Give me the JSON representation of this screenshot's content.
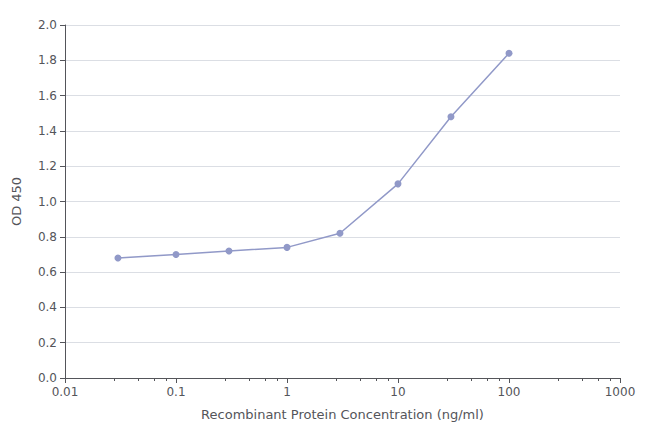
{
  "chart_data": {
    "type": "line",
    "x": [
      0.03,
      0.1,
      0.3,
      1.0,
      3.0,
      10.0,
      30.0,
      100.0
    ],
    "values": [
      0.68,
      0.7,
      0.72,
      0.74,
      0.82,
      1.1,
      1.48,
      1.84
    ],
    "xlabel": "Recombinant Protein Concentration (ng/ml)",
    "ylabel": "OD 450",
    "log": "x",
    "xlim": [
      0.01,
      1000
    ],
    "xticks": [
      0.01,
      0.1,
      1,
      10,
      100,
      1000
    ],
    "ylim": [
      0,
      2.0
    ],
    "yticks": [
      {
        "value": 0,
        "label": "0.0"
      },
      0.2,
      0.4,
      0.6,
      0.8,
      {
        "value": 1.0,
        "label": "1.0"
      },
      1.2,
      1.4,
      1.6,
      1.8,
      {
        "value": 2.0,
        "label": "2.0"
      }
    ],
    "color": "#9199c8",
    "marker": "circle",
    "grid": true
  }
}
